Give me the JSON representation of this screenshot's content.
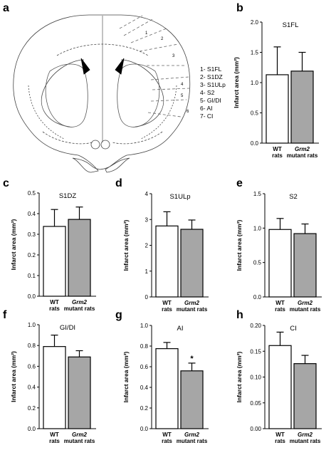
{
  "panels": {
    "a": "a",
    "b": "b",
    "c": "c",
    "d": "d",
    "e": "e",
    "f": "f",
    "g": "g",
    "h": "h"
  },
  "diagram": {
    "legend": [
      "1- S1FL",
      "2- S1DZ",
      "3- S1ULp",
      "4- S2",
      "5- GI/DI",
      "6- AI",
      "7- CI"
    ],
    "region_numbers": [
      "1",
      "2",
      "3",
      "4",
      "5",
      "6"
    ]
  },
  "chart_data": [
    {
      "id": "b",
      "type": "bar",
      "title": "S1FL",
      "ylabel": "Infarct area (mm²)",
      "ylim": [
        0,
        2.0
      ],
      "yticks": [
        "0.0",
        "0.5",
        "1.0",
        "1.5",
        "2.0"
      ],
      "ytick_values": [
        0,
        0.5,
        1.0,
        1.5,
        2.0
      ],
      "categories": [
        {
          "line1": "WT",
          "line2": "rats"
        },
        {
          "line1": "Grm2",
          "line2": "mutant rats"
        }
      ],
      "values": [
        1.13,
        1.19
      ],
      "errors": [
        0.46,
        0.31
      ],
      "colors": [
        "#ffffff",
        "#a6a6a6"
      ],
      "annotations": [
        "",
        ""
      ]
    },
    {
      "id": "c",
      "type": "bar",
      "title": "S1DZ",
      "ylabel": "Infarct area (mm²)",
      "ylim": [
        0,
        0.5
      ],
      "yticks": [
        "0.0",
        "0.1",
        "0.2",
        "0.3",
        "0.4",
        "0.5"
      ],
      "ytick_values": [
        0,
        0.1,
        0.2,
        0.3,
        0.4,
        0.5
      ],
      "categories": [
        {
          "line1": "WT",
          "line2": "rats"
        },
        {
          "line1": "Grm2",
          "line2": "mutant rats"
        }
      ],
      "values": [
        0.338,
        0.372
      ],
      "errors": [
        0.082,
        0.06
      ],
      "colors": [
        "#ffffff",
        "#a6a6a6"
      ],
      "annotations": [
        "",
        ""
      ]
    },
    {
      "id": "d",
      "type": "bar",
      "title": "S1ULp",
      "ylabel": "Infarct area (mm²)",
      "ylim": [
        0,
        4
      ],
      "yticks": [
        "0",
        "1",
        "2",
        "3",
        "4"
      ],
      "ytick_values": [
        0,
        1,
        2,
        3,
        4
      ],
      "categories": [
        {
          "line1": "WT",
          "line2": "rats"
        },
        {
          "line1": "Grm2",
          "line2": "mutant rats"
        }
      ],
      "values": [
        2.75,
        2.62
      ],
      "errors": [
        0.55,
        0.36
      ],
      "colors": [
        "#ffffff",
        "#a6a6a6"
      ],
      "annotations": [
        "",
        ""
      ]
    },
    {
      "id": "e",
      "type": "bar",
      "title": "S2",
      "ylabel": "Infarct area (mm²)",
      "ylim": [
        0,
        1.5
      ],
      "yticks": [
        "0.0",
        "0.5",
        "1.0",
        "1.5"
      ],
      "ytick_values": [
        0,
        0.5,
        1.0,
        1.5
      ],
      "categories": [
        {
          "line1": "WT",
          "line2": "rats"
        },
        {
          "line1": "Grm2",
          "line2": "mutant rats"
        }
      ],
      "values": [
        0.98,
        0.92
      ],
      "errors": [
        0.16,
        0.14
      ],
      "colors": [
        "#ffffff",
        "#a6a6a6"
      ],
      "annotations": [
        "",
        ""
      ]
    },
    {
      "id": "f",
      "type": "bar",
      "title": "GI/DI",
      "ylabel": "Infarct area (mm²)",
      "ylim": [
        0,
        1.0
      ],
      "yticks": [
        "0.0",
        "0.2",
        "0.4",
        "0.6",
        "0.8",
        "1.0"
      ],
      "ytick_values": [
        0,
        0.2,
        0.4,
        0.6,
        0.8,
        1.0
      ],
      "categories": [
        {
          "line1": "WT",
          "line2": "rats"
        },
        {
          "line1": "Grm2",
          "line2": "mutant rats"
        }
      ],
      "values": [
        0.79,
        0.69
      ],
      "errors": [
        0.11,
        0.06
      ],
      "colors": [
        "#ffffff",
        "#a6a6a6"
      ],
      "annotations": [
        "",
        ""
      ]
    },
    {
      "id": "g",
      "type": "bar",
      "title": "AI",
      "ylabel": "Infarct area (mm²)",
      "ylim": [
        0,
        1.0
      ],
      "yticks": [
        "0.0",
        "0.2",
        "0.4",
        "0.6",
        "0.8",
        "1.0"
      ],
      "ytick_values": [
        0,
        0.2,
        0.4,
        0.6,
        0.8,
        1.0
      ],
      "categories": [
        {
          "line1": "WT",
          "line2": "rats"
        },
        {
          "line1": "Grm2",
          "line2": "mutant rats"
        }
      ],
      "values": [
        0.775,
        0.56
      ],
      "errors": [
        0.06,
        0.075
      ],
      "colors": [
        "#ffffff",
        "#a6a6a6"
      ],
      "annotations": [
        "",
        "*"
      ]
    },
    {
      "id": "h",
      "type": "bar",
      "title": "CI",
      "ylabel": "Infarct area (mm²)",
      "ylim": [
        0,
        0.2
      ],
      "yticks": [
        "0.00",
        "0.05",
        "0.10",
        "0.15",
        "0.20"
      ],
      "ytick_values": [
        0,
        0.05,
        0.1,
        0.15,
        0.2
      ],
      "categories": [
        {
          "line1": "WT",
          "line2": "rats"
        },
        {
          "line1": "Grm2",
          "line2": "mutant rats"
        }
      ],
      "values": [
        0.161,
        0.126
      ],
      "errors": [
        0.026,
        0.016
      ],
      "colors": [
        "#ffffff",
        "#a6a6a6"
      ],
      "annotations": [
        "",
        ""
      ]
    }
  ]
}
